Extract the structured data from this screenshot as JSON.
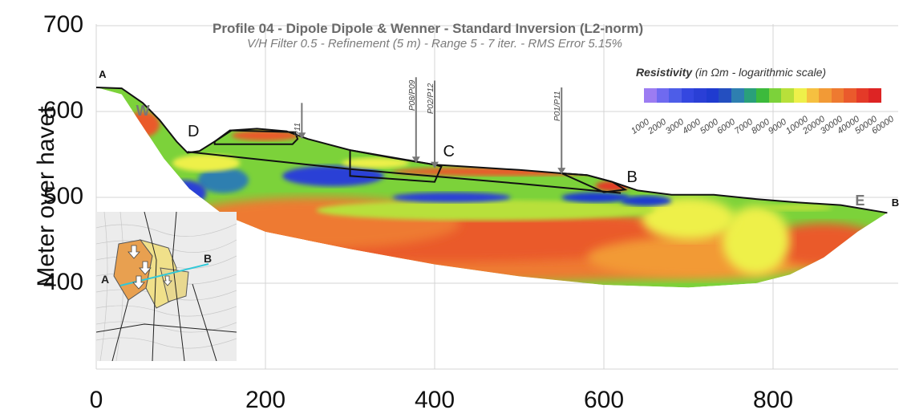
{
  "chart_data": {
    "type": "heatmap",
    "title": "Profile 04 - Dipole Dipole & Wenner - Standard Inversion (L2-norm)",
    "subtitle": "V/H Filter 0.5 - Refinement (5 m) - Range 5 - 7 iter. - RMS Error 5.15%",
    "ylabel": "Meter over havet",
    "xlabel": "",
    "xlim": [
      0,
      950
    ],
    "ylim": [
      300,
      700
    ],
    "x_ticks": [
      "0",
      "200",
      "400",
      "600",
      "800"
    ],
    "y_ticks": [
      "700",
      "600",
      "500",
      "400"
    ],
    "grid": true,
    "legend": {
      "title_bold": "Resistivity",
      "title_rest": " (in Ωm - logarithmic scale)",
      "placement": "top-right",
      "labels": [
        "1000",
        "2000",
        "3000",
        "4000",
        "5000",
        "6000",
        "7000",
        "8000",
        "9000",
        "10000",
        "20000",
        "30000",
        "40000",
        "50000",
        "60000"
      ]
    },
    "colorscale": [
      "#9c7cf2",
      "#6f6af0",
      "#4d5de8",
      "#3447e0",
      "#2a3fd6",
      "#1f3bd0",
      "#244fc0",
      "#2e7fb0",
      "#2aa07a",
      "#3cba3c",
      "#7cd23a",
      "#b8e03a",
      "#eef04a",
      "#f6c040",
      "#f29a36",
      "#ee7a30",
      "#ea5a2c",
      "#e43a28",
      "#dd2424"
    ],
    "surface_profile": [
      {
        "x": 0,
        "y": 628
      },
      {
        "x": 30,
        "y": 627
      },
      {
        "x": 55,
        "y": 610
      },
      {
        "x": 75,
        "y": 590
      },
      {
        "x": 95,
        "y": 565
      },
      {
        "x": 108,
        "y": 552
      },
      {
        "x": 122,
        "y": 554
      },
      {
        "x": 140,
        "y": 565
      },
      {
        "x": 160,
        "y": 578
      },
      {
        "x": 190,
        "y": 580
      },
      {
        "x": 225,
        "y": 577
      },
      {
        "x": 250,
        "y": 568
      },
      {
        "x": 300,
        "y": 555
      },
      {
        "x": 350,
        "y": 546
      },
      {
        "x": 400,
        "y": 538
      },
      {
        "x": 450,
        "y": 535
      },
      {
        "x": 500,
        "y": 532
      },
      {
        "x": 550,
        "y": 528
      },
      {
        "x": 580,
        "y": 526
      },
      {
        "x": 610,
        "y": 518
      },
      {
        "x": 640,
        "y": 508
      },
      {
        "x": 680,
        "y": 503
      },
      {
        "x": 730,
        "y": 503
      },
      {
        "x": 780,
        "y": 498
      },
      {
        "x": 830,
        "y": 494
      },
      {
        "x": 880,
        "y": 491
      },
      {
        "x": 935,
        "y": 482
      }
    ],
    "model_bottom": [
      {
        "x": 935,
        "y": 482
      },
      {
        "x": 900,
        "y": 460
      },
      {
        "x": 860,
        "y": 430
      },
      {
        "x": 820,
        "y": 410
      },
      {
        "x": 780,
        "y": 400
      },
      {
        "x": 700,
        "y": 395
      },
      {
        "x": 600,
        "y": 398
      },
      {
        "x": 500,
        "y": 408
      },
      {
        "x": 400,
        "y": 422
      },
      {
        "x": 300,
        "y": 440
      },
      {
        "x": 200,
        "y": 460
      },
      {
        "x": 150,
        "y": 480
      },
      {
        "x": 110,
        "y": 510
      },
      {
        "x": 80,
        "y": 545
      },
      {
        "x": 50,
        "y": 590
      },
      {
        "x": 30,
        "y": 620
      }
    ],
    "boundary_line": [
      {
        "x": 108,
        "y": 553
      },
      {
        "x": 300,
        "y": 533
      },
      {
        "x": 500,
        "y": 516
      },
      {
        "x": 620,
        "y": 505
      }
    ],
    "blocks": [
      {
        "label": "D",
        "points": [
          {
            "x": 140,
            "y": 565
          },
          {
            "x": 158,
            "y": 578
          },
          {
            "x": 235,
            "y": 576
          },
          {
            "x": 238,
            "y": 568
          },
          {
            "x": 232,
            "y": 562
          },
          {
            "x": 140,
            "y": 562
          }
        ]
      },
      {
        "label": "C",
        "points": [
          {
            "x": 300,
            "y": 555
          },
          {
            "x": 400,
            "y": 538
          },
          {
            "x": 408,
            "y": 536
          },
          {
            "x": 400,
            "y": 518
          },
          {
            "x": 300,
            "y": 525
          }
        ]
      },
      {
        "label": "B",
        "points": [
          {
            "x": 550,
            "y": 528
          },
          {
            "x": 580,
            "y": 526
          },
          {
            "x": 610,
            "y": 518
          },
          {
            "x": 625,
            "y": 509
          },
          {
            "x": 600,
            "y": 506
          }
        ]
      }
    ],
    "boreholes": [
      {
        "name": "P11",
        "x": 243,
        "y_top": 610,
        "y_bottom": 568
      },
      {
        "name": "P08/P09",
        "x": 378,
        "y_top": 640,
        "y_bottom": 540
      },
      {
        "name": "P02/P12",
        "x": 400,
        "y_top": 636,
        "y_bottom": 534
      },
      {
        "name": "P01/P11",
        "x": 550,
        "y_top": 628,
        "y_bottom": 527
      }
    ],
    "annotations": [
      {
        "text": "A",
        "x": 3,
        "y": 630
      },
      {
        "text": "W",
        "x": 47,
        "y": 590
      },
      {
        "text": "D",
        "x": 108,
        "y": 566
      },
      {
        "text": "C",
        "x": 410,
        "y": 543
      },
      {
        "text": "B",
        "x": 627,
        "y": 513
      },
      {
        "text": "E",
        "x": 897,
        "y": 485
      },
      {
        "text": "B",
        "x": 940,
        "y": 480
      }
    ]
  },
  "inset_map": {
    "labels": [
      "A",
      "B"
    ]
  }
}
